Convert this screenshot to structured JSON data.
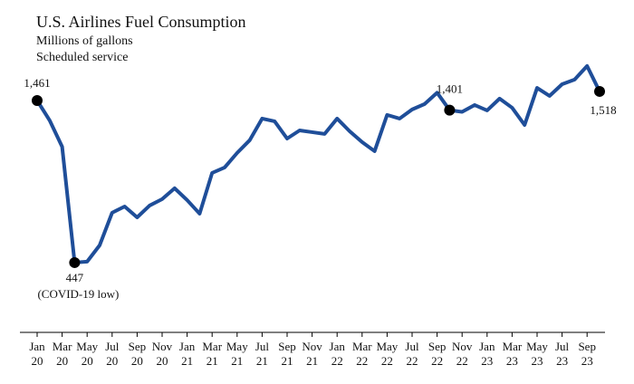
{
  "chart_data": {
    "type": "line",
    "title": "U.S. Airlines Fuel Consumption",
    "subtitle": "Millions of gallons",
    "subtitle2": "Scheduled service",
    "categories": [
      [
        "Jan",
        "20"
      ],
      null,
      [
        "Mar",
        "20"
      ],
      null,
      [
        "May",
        "20"
      ],
      null,
      [
        "Jul",
        "20"
      ],
      null,
      [
        "Sep",
        "20"
      ],
      null,
      [
        "Nov",
        "20"
      ],
      null,
      [
        "Jan",
        "21"
      ],
      null,
      [
        "Mar",
        "21"
      ],
      null,
      [
        "May",
        "21"
      ],
      null,
      [
        "Jul",
        "21"
      ],
      null,
      [
        "Sep",
        "21"
      ],
      null,
      [
        "Nov",
        "21"
      ],
      null,
      [
        "Jan",
        "22"
      ],
      null,
      [
        "Mar",
        "22"
      ],
      null,
      [
        "May",
        "22"
      ],
      null,
      [
        "Jul",
        "22"
      ],
      null,
      [
        "Sep",
        "22"
      ],
      null,
      [
        "Nov",
        "22"
      ],
      null,
      [
        "Jan",
        "23"
      ],
      null,
      [
        "Mar",
        "23"
      ],
      null,
      [
        "May",
        "23"
      ],
      null,
      [
        "Jul",
        "23"
      ],
      null,
      [
        "Sep",
        "23"
      ],
      null
    ],
    "series": [
      {
        "name": "Fuel consumption",
        "color": "#1f4e99",
        "values": [
          1461,
          1337,
          1172,
          447,
          453,
          555,
          759,
          798,
          730,
          804,
          844,
          912,
          838,
          753,
          1008,
          1042,
          1133,
          1212,
          1348,
          1331,
          1223,
          1274,
          1263,
          1252,
          1348,
          1269,
          1201,
          1144,
          1371,
          1348,
          1405,
          1439,
          1510,
          1401,
          1390,
          1433,
          1399,
          1473,
          1416,
          1308,
          1540,
          1490,
          1563,
          1592,
          1677,
          1518
        ],
        "value_labels": [
          "1,461",
          null,
          null,
          "447",
          null,
          null,
          null,
          null,
          null,
          null,
          null,
          null,
          null,
          null,
          null,
          null,
          null,
          null,
          null,
          null,
          null,
          null,
          null,
          null,
          null,
          null,
          null,
          null,
          null,
          null,
          null,
          null,
          null,
          "1,401",
          null,
          null,
          null,
          null,
          null,
          null,
          null,
          null,
          null,
          null,
          null,
          "1,518"
        ]
      }
    ],
    "annotations": [
      {
        "text": "(COVID-19 low)"
      }
    ],
    "ylim": [
      50,
      1750
    ]
  }
}
